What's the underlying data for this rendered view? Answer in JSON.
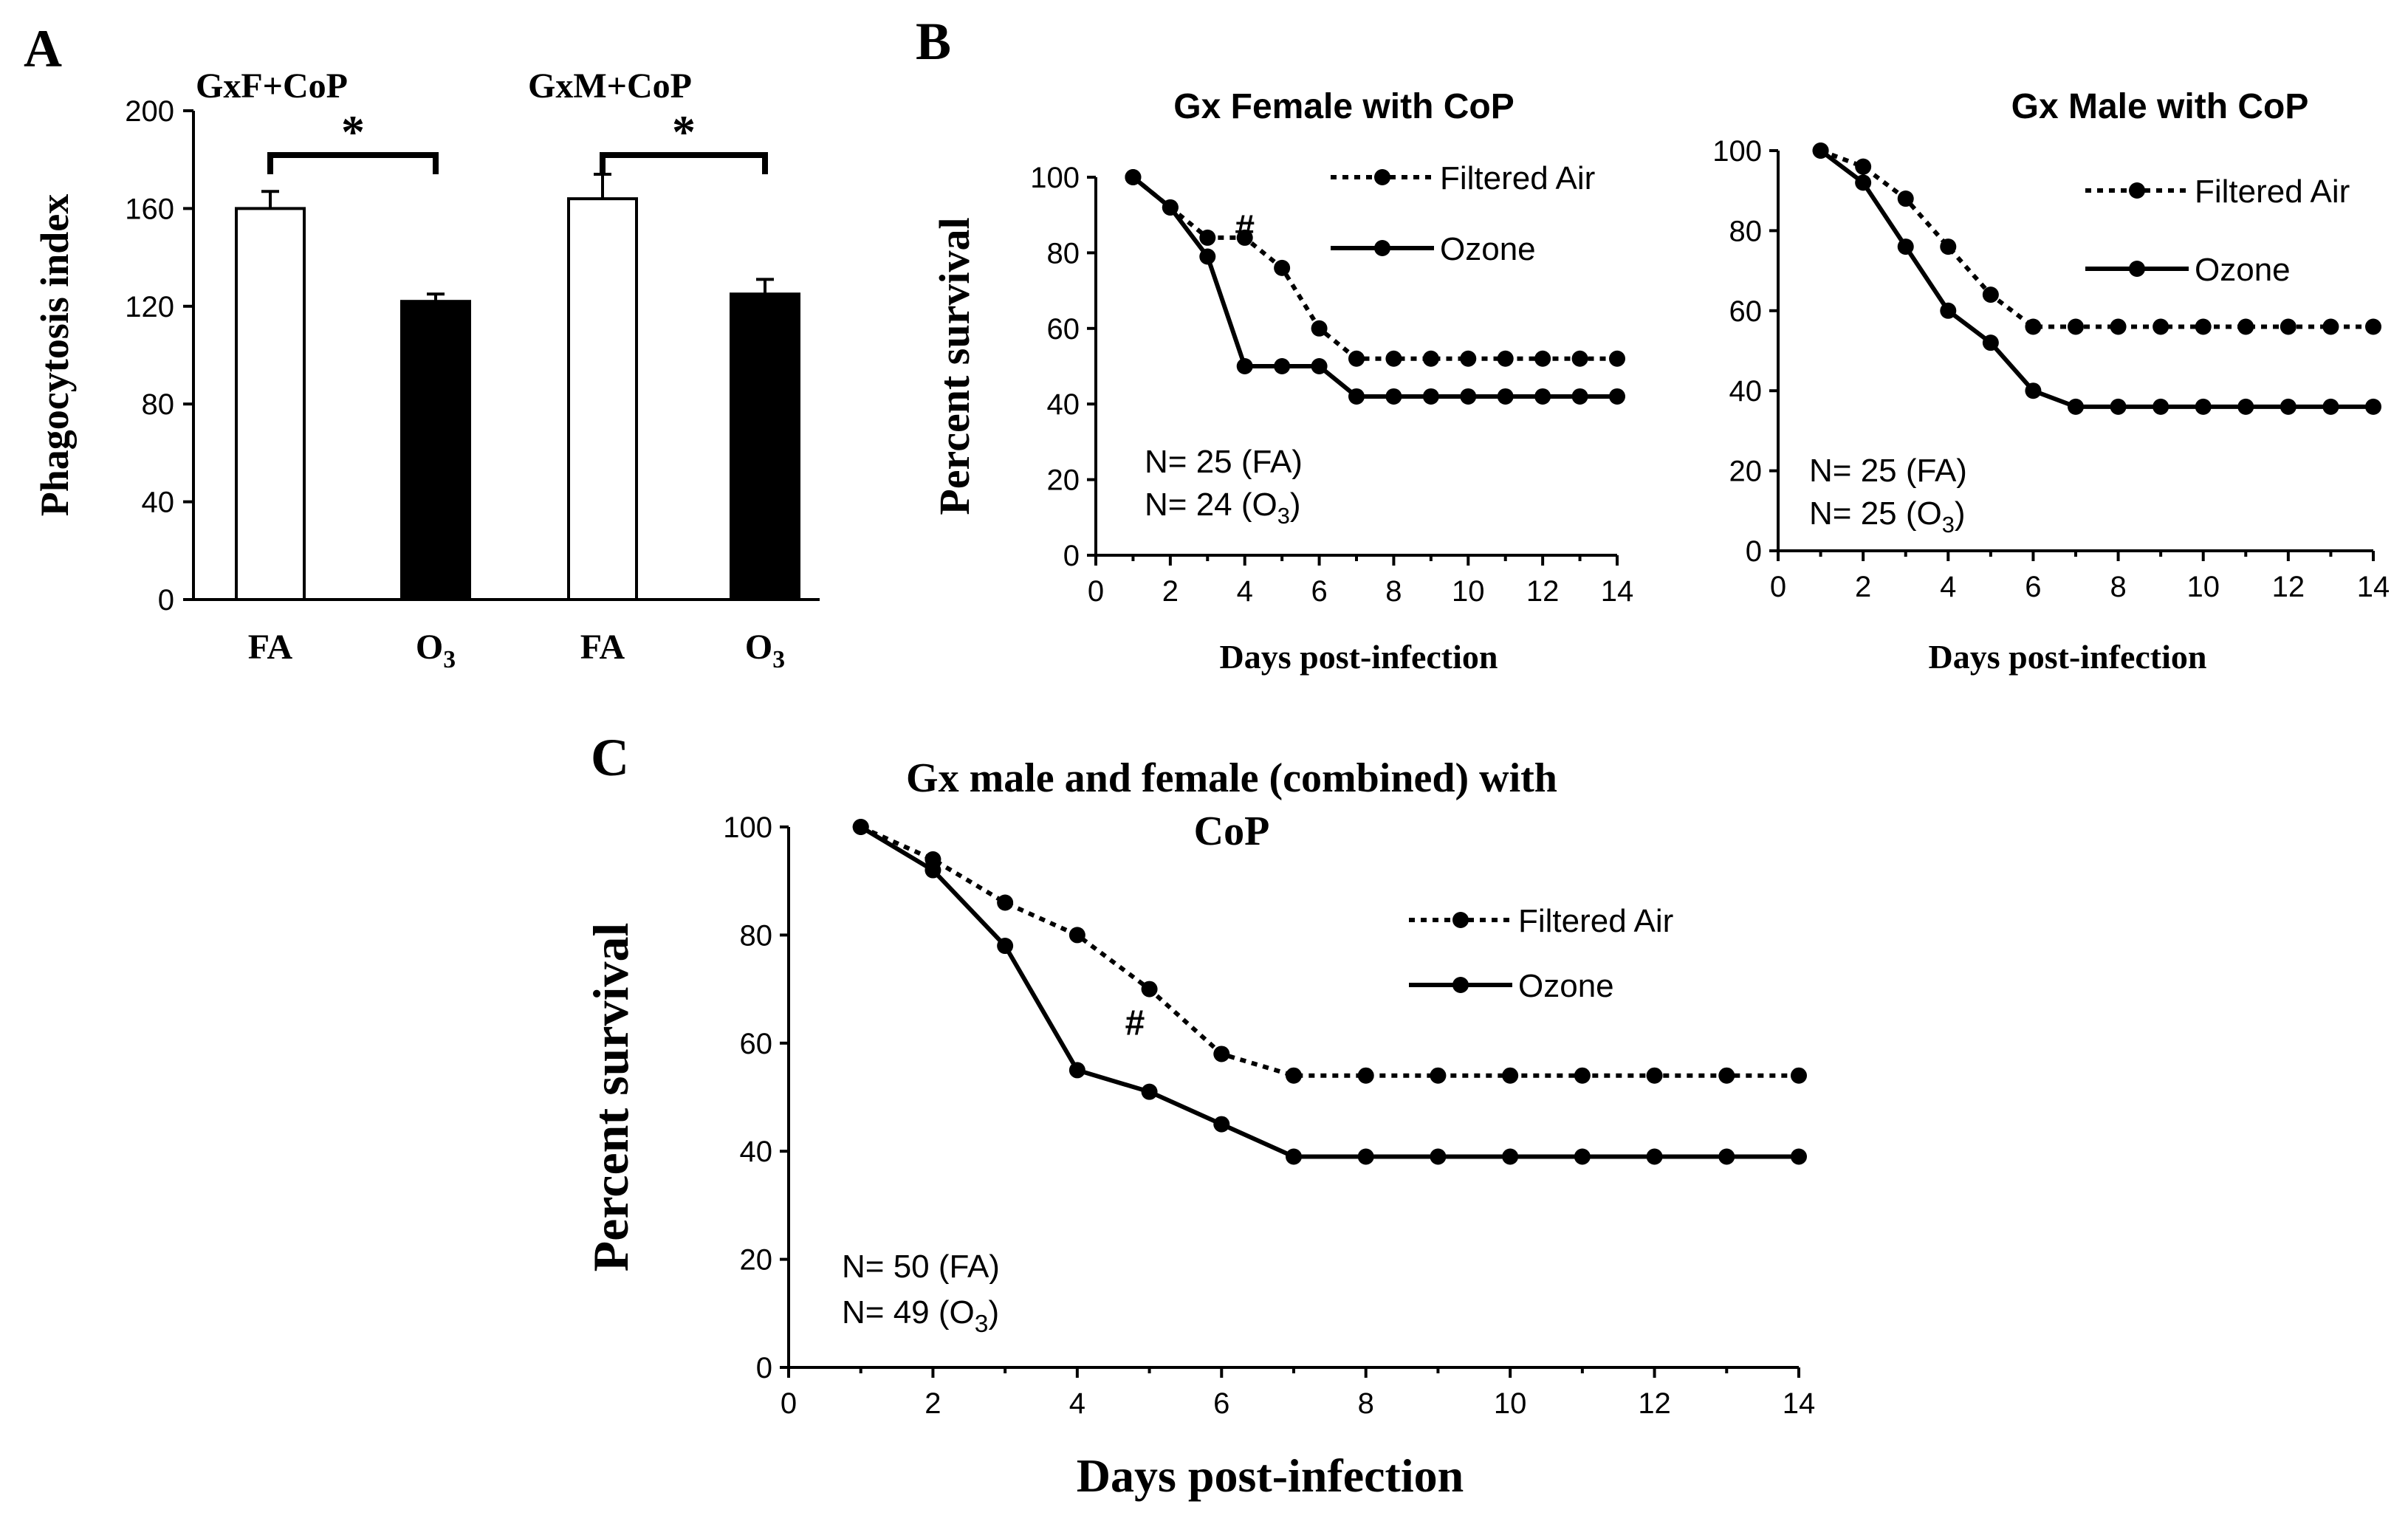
{
  "chart_data": [
    {
      "panel": "A",
      "type": "bar",
      "ylabel": "Phagocytosis index",
      "ylim": [
        0,
        200
      ],
      "yticks": [
        0,
        40,
        80,
        120,
        160,
        200
      ],
      "groups": [
        {
          "label": "GxF+CoP",
          "significance": "*"
        },
        {
          "label": "GxM+CoP",
          "significance": "*"
        }
      ],
      "bars": [
        {
          "label": "FA",
          "sub": "",
          "group": 0,
          "value": 160,
          "error": 7,
          "fill": "#ffffff"
        },
        {
          "label": "O",
          "sub": "3",
          "group": 0,
          "value": 122,
          "error": 3,
          "fill": "#000000"
        },
        {
          "label": "FA",
          "sub": "",
          "group": 1,
          "value": 164,
          "error": 10,
          "fill": "#ffffff"
        },
        {
          "label": "O",
          "sub": "3",
          "group": 1,
          "value": 125,
          "error": 6,
          "fill": "#000000"
        }
      ]
    },
    {
      "panel": "B",
      "type": "line",
      "title": "Gx Female with CoP",
      "xlabel": "Days post-infection",
      "ylabel": "Percent survival",
      "xlim": [
        0,
        14
      ],
      "ylim": [
        0,
        100
      ],
      "xticks": [
        0,
        2,
        4,
        6,
        8,
        10,
        12,
        14
      ],
      "yticks": [
        0,
        20,
        40,
        60,
        80,
        100
      ],
      "x": [
        1,
        2,
        3,
        4,
        5,
        6,
        7,
        8,
        9,
        10,
        11,
        12,
        13,
        14
      ],
      "series": [
        {
          "name": "Filtered Air",
          "style": "dotted",
          "values": [
            100,
            92,
            84,
            84,
            76,
            60,
            52,
            52,
            52,
            52,
            52,
            52,
            52,
            52
          ]
        },
        {
          "name": "Ozone",
          "style": "solid",
          "values": [
            100,
            92,
            79,
            50,
            50,
            50,
            42,
            42,
            42,
            42,
            42,
            42,
            42,
            42
          ]
        }
      ],
      "annotation": {
        "text": "#",
        "x": 4,
        "y": 87
      },
      "n_lines": [
        {
          "text": "N= 25 (FA)",
          "pre": "N= 25 (FA)",
          "sub": "",
          "post": ""
        },
        {
          "text": "N= 24 (O3)",
          "pre": "N= 24 (O",
          "sub": "3",
          "post": ")"
        }
      ]
    },
    {
      "panel": "B",
      "type": "line",
      "title": "Gx Male with CoP",
      "xlabel": "Days post-infection",
      "ylabel": "",
      "xlim": [
        0,
        14
      ],
      "ylim": [
        0,
        100
      ],
      "xticks": [
        0,
        2,
        4,
        6,
        8,
        10,
        12,
        14
      ],
      "yticks": [
        0,
        20,
        40,
        60,
        80,
        100
      ],
      "x": [
        1,
        2,
        3,
        4,
        5,
        6,
        7,
        8,
        9,
        10,
        11,
        12,
        13,
        14
      ],
      "series": [
        {
          "name": "Filtered Air",
          "style": "dotted",
          "values": [
            100,
            96,
            88,
            76,
            64,
            56,
            56,
            56,
            56,
            56,
            56,
            56,
            56,
            56
          ]
        },
        {
          "name": "Ozone",
          "style": "solid",
          "values": [
            100,
            92,
            76,
            60,
            52,
            40,
            36,
            36,
            36,
            36,
            36,
            36,
            36,
            36
          ]
        }
      ],
      "n_lines": [
        {
          "text": "N= 25 (FA)",
          "pre": "N= 25 (FA)",
          "sub": "",
          "post": ""
        },
        {
          "text": "N= 25 (O3)",
          "pre": "N= 25 (O",
          "sub": "3",
          "post": ")"
        }
      ]
    },
    {
      "panel": "C",
      "type": "line",
      "title": "Gx male and female (combined) with CoP",
      "title_lines": [
        "Gx male and female (combined) with",
        "CoP"
      ],
      "xlabel": "Days post-infection",
      "ylabel": "Percent survival",
      "xlim": [
        0,
        14
      ],
      "ylim": [
        0,
        100
      ],
      "xticks": [
        0,
        2,
        4,
        6,
        8,
        10,
        12,
        14
      ],
      "yticks": [
        0,
        20,
        40,
        60,
        80,
        100
      ],
      "x": [
        1,
        2,
        3,
        4,
        5,
        6,
        7,
        8,
        9,
        10,
        11,
        12,
        13,
        14
      ],
      "series": [
        {
          "name": "Filtered Air",
          "style": "dotted",
          "values": [
            100,
            94,
            86,
            80,
            70,
            58,
            54,
            54,
            54,
            54,
            54,
            54,
            54,
            54
          ]
        },
        {
          "name": "Ozone",
          "style": "solid",
          "values": [
            100,
            92,
            78,
            55,
            51,
            45,
            39,
            39,
            39,
            39,
            39,
            39,
            39,
            39
          ]
        }
      ],
      "annotation": {
        "text": "#",
        "x": 4.8,
        "y": 64
      },
      "n_lines": [
        {
          "text": "N= 50 (FA)",
          "pre": "N= 50 (FA)",
          "sub": "",
          "post": ""
        },
        {
          "text": "N= 49 (O3)",
          "pre": "N= 49 (O",
          "sub": "3",
          "post": ")"
        }
      ]
    }
  ],
  "panel_labels": {
    "a": "A",
    "b": "B",
    "c": "C"
  },
  "colors": {
    "line": "#000000",
    "background": "#ffffff",
    "bar_fa": "#ffffff",
    "bar_o3": "#000000"
  }
}
